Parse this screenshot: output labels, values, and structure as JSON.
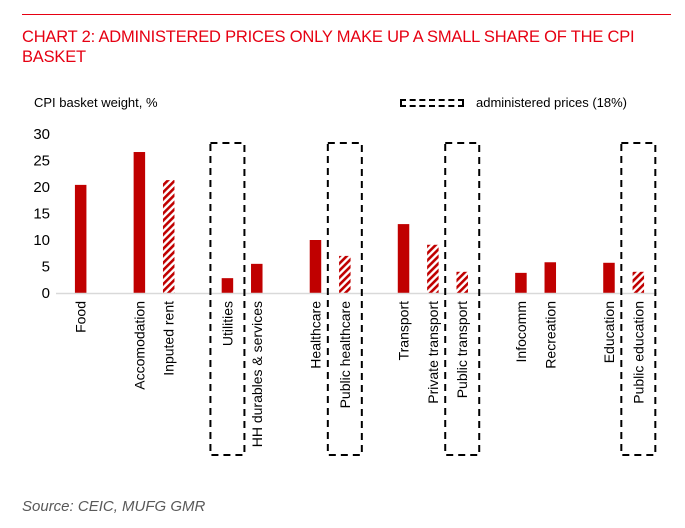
{
  "header": {
    "title": "CHART 2: ADMINISTERED PRICES ONLY MAKE UP A SMALL SHARE OF THE CPI BASKET"
  },
  "footer": {
    "source": "Source: CEIC, MUFG GMR"
  },
  "colors": {
    "accent": "#e60012",
    "bar": "#c00000",
    "hatch_bg": "#ffffff",
    "box": "#000000",
    "axis": "#d9d9d9"
  },
  "chart_data": {
    "type": "bar",
    "title": "CHART 2: ADMINISTERED PRICES ONLY MAKE UP A SMALL SHARE OF THE CPI BASKET",
    "ylabel": "CPI basket weight, %",
    "xlabel": "",
    "ylim": [
      0,
      30
    ],
    "yticks": [
      0,
      5,
      10,
      15,
      20,
      25,
      30
    ],
    "grid": false,
    "legend": {
      "label": "administered prices (18%)",
      "placement": "top-right",
      "style": "dashed-box"
    },
    "categories": [
      "Food",
      "",
      "Accomodation",
      "Inputed rent",
      "",
      "Utilities",
      "HH durables & services",
      "",
      "Healthcare",
      "Public healthcare",
      "",
      "Transport",
      "Private transport",
      "Public transport",
      "",
      "Infocomm",
      "Recreation",
      "",
      "Education",
      "Public education"
    ],
    "values": [
      20.4,
      null,
      26.6,
      21.3,
      null,
      2.8,
      5.5,
      null,
      10.0,
      7.0,
      null,
      13.0,
      9.1,
      4.0,
      null,
      3.8,
      5.8,
      null,
      5.7,
      4.0
    ],
    "hatched": [
      false,
      false,
      false,
      true,
      false,
      false,
      false,
      false,
      false,
      true,
      false,
      false,
      true,
      true,
      false,
      false,
      false,
      false,
      false,
      true
    ],
    "administered": [
      "Utilities",
      "Public healthcare",
      "Public transport",
      "Public education"
    ]
  }
}
